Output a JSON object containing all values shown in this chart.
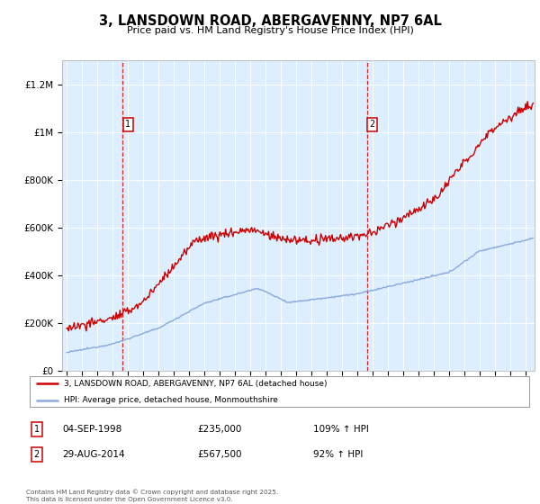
{
  "title": "3, LANSDOWN ROAD, ABERGAVENNY, NP7 6AL",
  "subtitle": "Price paid vs. HM Land Registry's House Price Index (HPI)",
  "ylim": [
    0,
    1300000
  ],
  "yticks": [
    0,
    200000,
    400000,
    600000,
    800000,
    1000000,
    1200000
  ],
  "ytick_labels": [
    "£0",
    "£200K",
    "£400K",
    "£600K",
    "£800K",
    "£1M",
    "£1.2M"
  ],
  "xlim_start": 1994.7,
  "xlim_end": 2025.6,
  "xticks": [
    1995,
    1996,
    1997,
    1998,
    1999,
    2000,
    2001,
    2002,
    2003,
    2004,
    2005,
    2006,
    2007,
    2008,
    2009,
    2010,
    2011,
    2012,
    2013,
    2014,
    2015,
    2016,
    2017,
    2018,
    2019,
    2020,
    2021,
    2022,
    2023,
    2024,
    2025
  ],
  "background_color": "#ddeeff",
  "fig_bg_color": "#ffffff",
  "red_line_color": "#cc0000",
  "blue_line_color": "#88aadd",
  "annotation1_date": 1998.67,
  "annotation1_price": 235000,
  "annotation1_label": "1",
  "annotation2_date": 2014.66,
  "annotation2_price": 567500,
  "annotation2_label": "2",
  "legend_line1": "3, LANSDOWN ROAD, ABERGAVENNY, NP7 6AL (detached house)",
  "legend_line2": "HPI: Average price, detached house, Monmouthshire",
  "note1_box": "1",
  "note1_date": "04-SEP-1998",
  "note1_price": "£235,000",
  "note1_hpi": "109% ↑ HPI",
  "note2_box": "2",
  "note2_date": "29-AUG-2014",
  "note2_price": "£567,500",
  "note2_hpi": "92% ↑ HPI",
  "footer": "Contains HM Land Registry data © Crown copyright and database right 2025.\nThis data is licensed under the Open Government Licence v3.0."
}
